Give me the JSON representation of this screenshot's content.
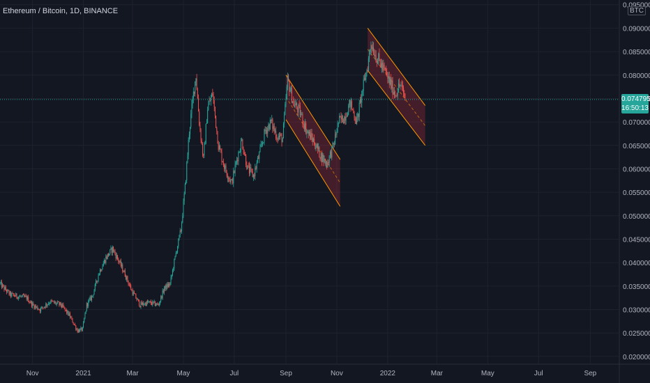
{
  "symbol_title": "Ethereum / Bitcoin, 1D, BINANCE",
  "currency": "BTC",
  "last_price": "0.074795",
  "countdown": "16:50:13",
  "colors": {
    "background": "#131722",
    "grid": "#1e222d",
    "up": "#26a69a",
    "down": "#ef5350",
    "channel_line": "#ff9800",
    "channel_fill": "rgba(242,54,69,0.22)",
    "price_line": "#26a69a",
    "text": "#b2b5be"
  },
  "chart_data": {
    "type": "candlestick",
    "title": "Ethereum / Bitcoin, 1D, BINANCE",
    "xlabel": "",
    "ylabel": "",
    "x_ticks": [
      "Nov",
      "2021",
      "Mar",
      "May",
      "Jul",
      "Sep",
      "Nov",
      "2022",
      "Mar",
      "May",
      "Jul",
      "Sep"
    ],
    "x_tick_dates": [
      "2020-11-01",
      "2021-01-01",
      "2021-03-01",
      "2021-05-01",
      "2021-07-01",
      "2021-09-01",
      "2021-11-01",
      "2022-01-01",
      "2022-03-01",
      "2022-05-01",
      "2022-07-01",
      "2022-09-01"
    ],
    "y_ticks": [
      "0.020000",
      "0.025000",
      "0.030000",
      "0.035000",
      "0.040000",
      "0.045000",
      "0.050000",
      "0.055000",
      "0.060000",
      "0.065000",
      "0.070000",
      "0.075000",
      "0.080000",
      "0.085000",
      "0.090000",
      "0.095000"
    ],
    "ylim": [
      0.0185,
      0.096
    ],
    "xlim": [
      "2020-09-23",
      "2022-10-05"
    ],
    "grid": true,
    "last_price": 0.074795,
    "series": [
      {
        "name": "ETHBTC",
        "close_path": [
          [
            "2020-09-23",
            0.0355
          ],
          [
            "2020-10-05",
            0.0332
          ],
          [
            "2020-10-15",
            0.0328
          ],
          [
            "2020-10-25",
            0.0325
          ],
          [
            "2020-11-01",
            0.031
          ],
          [
            "2020-11-10",
            0.03
          ],
          [
            "2020-11-22",
            0.0317
          ],
          [
            "2020-12-05",
            0.031
          ],
          [
            "2020-12-15",
            0.0288
          ],
          [
            "2020-12-25",
            0.0255
          ],
          [
            "2020-12-31",
            0.0258
          ],
          [
            "2021-01-05",
            0.031
          ],
          [
            "2021-01-12",
            0.033
          ],
          [
            "2021-01-20",
            0.038
          ],
          [
            "2021-01-28",
            0.041
          ],
          [
            "2021-02-05",
            0.043
          ],
          [
            "2021-02-12",
            0.0405
          ],
          [
            "2021-02-20",
            0.0375
          ],
          [
            "2021-02-28",
            0.034
          ],
          [
            "2021-03-10",
            0.031
          ],
          [
            "2021-03-20",
            0.0315
          ],
          [
            "2021-04-01",
            0.031
          ],
          [
            "2021-04-08",
            0.0345
          ],
          [
            "2021-04-15",
            0.0355
          ],
          [
            "2021-04-22",
            0.042
          ],
          [
            "2021-04-28",
            0.047
          ],
          [
            "2021-05-03",
            0.056
          ],
          [
            "2021-05-08",
            0.068
          ],
          [
            "2021-05-13",
            0.076
          ],
          [
            "2021-05-16",
            0.08
          ],
          [
            "2021-05-20",
            0.07
          ],
          [
            "2021-05-25",
            0.062
          ],
          [
            "2021-05-30",
            0.073
          ],
          [
            "2021-06-05",
            0.076
          ],
          [
            "2021-06-12",
            0.065
          ],
          [
            "2021-06-20",
            0.06
          ],
          [
            "2021-06-28",
            0.057
          ],
          [
            "2021-07-04",
            0.062
          ],
          [
            "2021-07-10",
            0.066
          ],
          [
            "2021-07-17",
            0.06
          ],
          [
            "2021-07-24",
            0.0585
          ],
          [
            "2021-07-31",
            0.063
          ],
          [
            "2021-08-07",
            0.068
          ],
          [
            "2021-08-14",
            0.07
          ],
          [
            "2021-08-21",
            0.067
          ],
          [
            "2021-08-28",
            0.0665
          ],
          [
            "2021-09-03",
            0.079
          ],
          [
            "2021-09-10",
            0.074
          ],
          [
            "2021-09-18",
            0.072
          ],
          [
            "2021-09-26",
            0.068
          ],
          [
            "2021-10-04",
            0.066
          ],
          [
            "2021-10-12",
            0.063
          ],
          [
            "2021-10-20",
            0.061
          ],
          [
            "2021-10-28",
            0.065
          ],
          [
            "2021-11-03",
            0.07
          ],
          [
            "2021-11-10",
            0.071
          ],
          [
            "2021-11-17",
            0.074
          ],
          [
            "2021-11-25",
            0.07
          ],
          [
            "2021-12-02",
            0.077
          ],
          [
            "2021-12-08",
            0.082
          ],
          [
            "2021-12-12",
            0.087
          ],
          [
            "2021-12-18",
            0.084
          ],
          [
            "2021-12-25",
            0.082
          ],
          [
            "2022-01-02",
            0.079
          ],
          [
            "2022-01-10",
            0.076
          ],
          [
            "2022-01-16",
            0.078
          ],
          [
            "2022-01-22",
            0.075
          ]
        ]
      }
    ],
    "channels": [
      {
        "upper": [
          [
            "2021-09-01",
            0.08
          ],
          [
            "2021-11-05",
            0.062
          ]
        ],
        "lower": [
          [
            "2021-09-01",
            0.0705
          ],
          [
            "2021-11-05",
            0.052
          ]
        ],
        "mid": [
          [
            "2021-09-01",
            0.0753
          ],
          [
            "2021-11-05",
            0.057
          ]
        ]
      },
      {
        "upper": [
          [
            "2021-12-08",
            0.09
          ],
          [
            "2022-02-15",
            0.0735
          ]
        ],
        "lower": [
          [
            "2021-12-08",
            0.081
          ],
          [
            "2022-02-15",
            0.065
          ]
        ],
        "mid": [
          [
            "2021-12-08",
            0.0855
          ],
          [
            "2022-02-15",
            0.0692
          ]
        ]
      }
    ]
  }
}
